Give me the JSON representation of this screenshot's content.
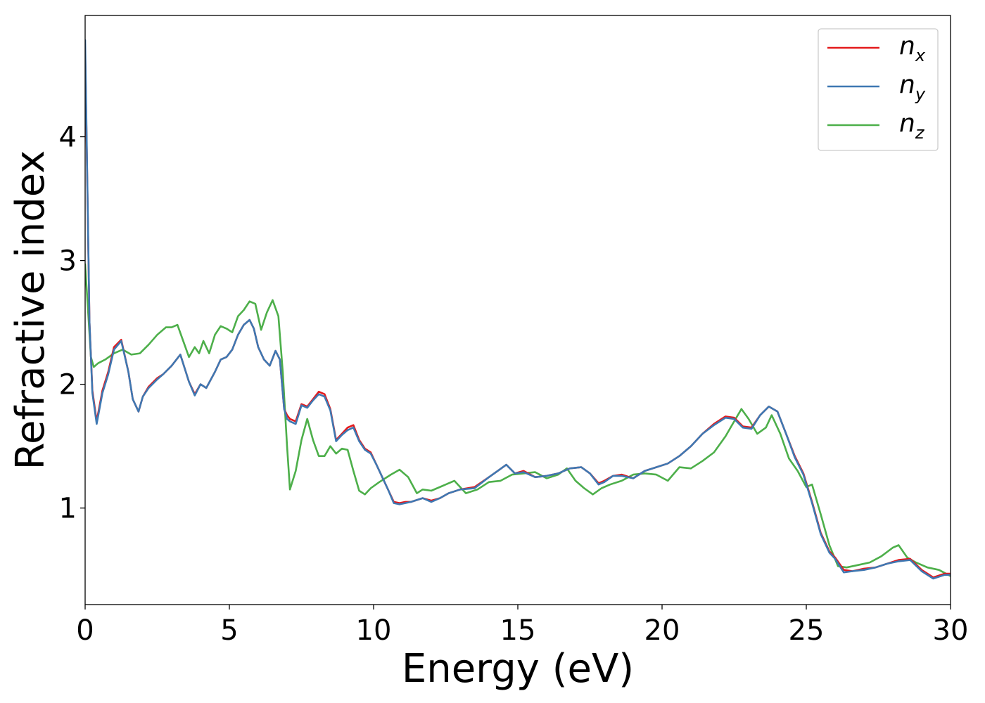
{
  "chart_data": {
    "type": "line",
    "title": "",
    "xlabel": "Energy (eV)",
    "ylabel": "Refractive index",
    "xlim": [
      0,
      30
    ],
    "ylim": [
      0.22,
      4.98
    ],
    "xticks": [
      0,
      5,
      10,
      15,
      20,
      25,
      30
    ],
    "yticks": [
      1,
      2,
      3,
      4
    ],
    "grid": false,
    "legend_position": "top-right",
    "series": [
      {
        "name": "n_x",
        "label_base": "n",
        "label_sub": "x",
        "color": "#e41a1c",
        "x": [
          0,
          0.05,
          0.15,
          0.25,
          0.4,
          0.6,
          0.8,
          1.0,
          1.25,
          1.5,
          1.65,
          1.85,
          2.0,
          2.2,
          2.5,
          2.7,
          3.0,
          3.3,
          3.6,
          3.8,
          4.0,
          4.2,
          4.5,
          4.7,
          4.9,
          5.1,
          5.3,
          5.5,
          5.7,
          5.85,
          6.0,
          6.2,
          6.4,
          6.6,
          6.75,
          6.9,
          7.0,
          7.1,
          7.3,
          7.5,
          7.7,
          7.9,
          8.1,
          8.3,
          8.5,
          8.7,
          8.9,
          9.1,
          9.3,
          9.5,
          9.7,
          9.9,
          10.1,
          10.3,
          10.5,
          10.7,
          10.9,
          11.1,
          11.3,
          11.7,
          12.0,
          12.3,
          12.6,
          13.0,
          13.5,
          14.0,
          14.3,
          14.6,
          14.9,
          15.2,
          15.6,
          16.0,
          16.4,
          16.8,
          17.2,
          17.5,
          17.8,
          18.0,
          18.3,
          18.6,
          19.0,
          19.4,
          19.8,
          20.2,
          20.6,
          21.0,
          21.4,
          21.8,
          22.2,
          22.5,
          22.8,
          23.1,
          23.4,
          23.7,
          24.0,
          24.3,
          24.6,
          24.9,
          25.2,
          25.5,
          25.8,
          26.0,
          26.3,
          26.6,
          27.0,
          27.4,
          27.8,
          28.2,
          28.6,
          29.0,
          29.4,
          29.8,
          30
        ],
        "y": [
          4.7,
          4.0,
          2.5,
          1.95,
          1.7,
          1.95,
          2.1,
          2.3,
          2.36,
          2.1,
          1.88,
          1.78,
          1.9,
          1.98,
          2.05,
          2.08,
          2.15,
          2.24,
          2.02,
          1.92,
          2.0,
          1.97,
          2.1,
          2.2,
          2.22,
          2.28,
          2.4,
          2.48,
          2.52,
          2.45,
          2.3,
          2.2,
          2.15,
          2.27,
          2.2,
          1.8,
          1.75,
          1.72,
          1.7,
          1.84,
          1.82,
          1.88,
          1.94,
          1.92,
          1.8,
          1.55,
          1.6,
          1.65,
          1.67,
          1.55,
          1.48,
          1.45,
          1.35,
          1.25,
          1.15,
          1.05,
          1.04,
          1.05,
          1.05,
          1.08,
          1.06,
          1.08,
          1.12,
          1.15,
          1.17,
          1.25,
          1.3,
          1.35,
          1.28,
          1.3,
          1.25,
          1.26,
          1.28,
          1.32,
          1.33,
          1.28,
          1.2,
          1.22,
          1.26,
          1.27,
          1.24,
          1.3,
          1.33,
          1.36,
          1.42,
          1.5,
          1.6,
          1.68,
          1.74,
          1.73,
          1.66,
          1.65,
          1.75,
          1.82,
          1.78,
          1.6,
          1.42,
          1.28,
          1.05,
          0.8,
          0.65,
          0.6,
          0.5,
          0.49,
          0.51,
          0.52,
          0.55,
          0.58,
          0.59,
          0.5,
          0.44,
          0.47,
          0.47
        ]
      },
      {
        "name": "n_y",
        "label_base": "n",
        "label_sub": "y",
        "color": "#3e78b2",
        "x": [
          0,
          0.05,
          0.15,
          0.25,
          0.4,
          0.6,
          0.8,
          1.0,
          1.25,
          1.5,
          1.65,
          1.85,
          2.0,
          2.2,
          2.5,
          2.7,
          3.0,
          3.3,
          3.6,
          3.8,
          4.0,
          4.2,
          4.5,
          4.7,
          4.9,
          5.1,
          5.3,
          5.5,
          5.7,
          5.85,
          6.0,
          6.2,
          6.4,
          6.6,
          6.75,
          6.9,
          7.0,
          7.1,
          7.3,
          7.5,
          7.7,
          7.9,
          8.1,
          8.3,
          8.5,
          8.7,
          8.9,
          9.1,
          9.3,
          9.5,
          9.7,
          9.9,
          10.1,
          10.3,
          10.5,
          10.7,
          10.9,
          11.1,
          11.3,
          11.7,
          12.0,
          12.3,
          12.6,
          13.0,
          13.5,
          14.0,
          14.3,
          14.6,
          14.9,
          15.2,
          15.6,
          16.0,
          16.4,
          16.8,
          17.2,
          17.5,
          17.8,
          18.0,
          18.3,
          18.6,
          19.0,
          19.4,
          19.8,
          20.2,
          20.6,
          21.0,
          21.4,
          21.8,
          22.2,
          22.5,
          22.8,
          23.1,
          23.4,
          23.7,
          24.0,
          24.3,
          24.6,
          24.9,
          25.2,
          25.5,
          25.8,
          26.0,
          26.3,
          26.6,
          27.0,
          27.4,
          27.8,
          28.2,
          28.6,
          29.0,
          29.4,
          29.8,
          30
        ],
        "y": [
          4.78,
          4.05,
          2.5,
          1.93,
          1.68,
          1.93,
          2.08,
          2.28,
          2.35,
          2.1,
          1.88,
          1.78,
          1.9,
          1.97,
          2.04,
          2.08,
          2.15,
          2.24,
          2.02,
          1.91,
          2.0,
          1.97,
          2.1,
          2.2,
          2.22,
          2.28,
          2.4,
          2.48,
          2.52,
          2.45,
          2.3,
          2.2,
          2.15,
          2.27,
          2.2,
          1.8,
          1.72,
          1.7,
          1.68,
          1.83,
          1.81,
          1.87,
          1.92,
          1.9,
          1.79,
          1.54,
          1.59,
          1.63,
          1.65,
          1.54,
          1.47,
          1.44,
          1.35,
          1.25,
          1.15,
          1.04,
          1.03,
          1.04,
          1.05,
          1.08,
          1.05,
          1.08,
          1.12,
          1.15,
          1.16,
          1.25,
          1.3,
          1.35,
          1.28,
          1.29,
          1.25,
          1.26,
          1.28,
          1.32,
          1.33,
          1.28,
          1.19,
          1.21,
          1.26,
          1.26,
          1.24,
          1.3,
          1.33,
          1.36,
          1.42,
          1.5,
          1.6,
          1.67,
          1.73,
          1.72,
          1.65,
          1.64,
          1.75,
          1.82,
          1.78,
          1.6,
          1.41,
          1.27,
          1.04,
          0.79,
          0.64,
          0.59,
          0.48,
          0.49,
          0.5,
          0.52,
          0.55,
          0.57,
          0.58,
          0.49,
          0.43,
          0.46,
          0.46
        ]
      },
      {
        "name": "n_z",
        "label_base": "n",
        "label_sub": "z",
        "color": "#4daf4a",
        "x": [
          0,
          0.1,
          0.2,
          0.3,
          0.45,
          0.7,
          1.0,
          1.3,
          1.6,
          1.9,
          2.2,
          2.5,
          2.8,
          3.0,
          3.2,
          3.4,
          3.6,
          3.8,
          3.95,
          4.1,
          4.3,
          4.5,
          4.7,
          4.9,
          5.1,
          5.3,
          5.5,
          5.7,
          5.9,
          6.1,
          6.3,
          6.5,
          6.7,
          6.85,
          7.0,
          7.1,
          7.3,
          7.5,
          7.7,
          7.9,
          8.1,
          8.3,
          8.5,
          8.7,
          8.9,
          9.1,
          9.3,
          9.5,
          9.7,
          9.9,
          10.2,
          10.6,
          10.9,
          11.2,
          11.5,
          11.7,
          12.0,
          12.4,
          12.8,
          13.2,
          13.6,
          14.0,
          14.4,
          14.8,
          15.2,
          15.6,
          16.0,
          16.4,
          16.7,
          17.0,
          17.3,
          17.6,
          17.9,
          18.2,
          18.6,
          19.0,
          19.4,
          19.8,
          20.2,
          20.6,
          21.0,
          21.4,
          21.8,
          22.2,
          22.5,
          22.75,
          23.0,
          23.3,
          23.6,
          23.8,
          24.1,
          24.4,
          24.7,
          25.0,
          25.2,
          25.5,
          25.8,
          26.1,
          26.4,
          26.8,
          27.2,
          27.6,
          28.0,
          28.2,
          28.5,
          28.8,
          29.2,
          29.6,
          30
        ],
        "y": [
          2.97,
          2.6,
          2.22,
          2.14,
          2.17,
          2.2,
          2.25,
          2.28,
          2.24,
          2.25,
          2.32,
          2.4,
          2.46,
          2.46,
          2.48,
          2.35,
          2.22,
          2.3,
          2.25,
          2.35,
          2.25,
          2.4,
          2.47,
          2.45,
          2.42,
          2.55,
          2.6,
          2.67,
          2.65,
          2.44,
          2.58,
          2.68,
          2.55,
          2.1,
          1.5,
          1.15,
          1.3,
          1.55,
          1.72,
          1.55,
          1.42,
          1.42,
          1.5,
          1.44,
          1.48,
          1.47,
          1.3,
          1.14,
          1.11,
          1.16,
          1.21,
          1.27,
          1.31,
          1.25,
          1.12,
          1.15,
          1.14,
          1.18,
          1.22,
          1.12,
          1.15,
          1.21,
          1.22,
          1.27,
          1.28,
          1.29,
          1.24,
          1.27,
          1.32,
          1.22,
          1.16,
          1.11,
          1.16,
          1.19,
          1.22,
          1.27,
          1.28,
          1.27,
          1.22,
          1.33,
          1.32,
          1.38,
          1.45,
          1.58,
          1.7,
          1.8,
          1.72,
          1.6,
          1.65,
          1.75,
          1.6,
          1.4,
          1.3,
          1.17,
          1.19,
          0.95,
          0.7,
          0.53,
          0.52,
          0.54,
          0.56,
          0.61,
          0.68,
          0.7,
          0.6,
          0.56,
          0.52,
          0.5,
          0.45
        ]
      }
    ]
  }
}
